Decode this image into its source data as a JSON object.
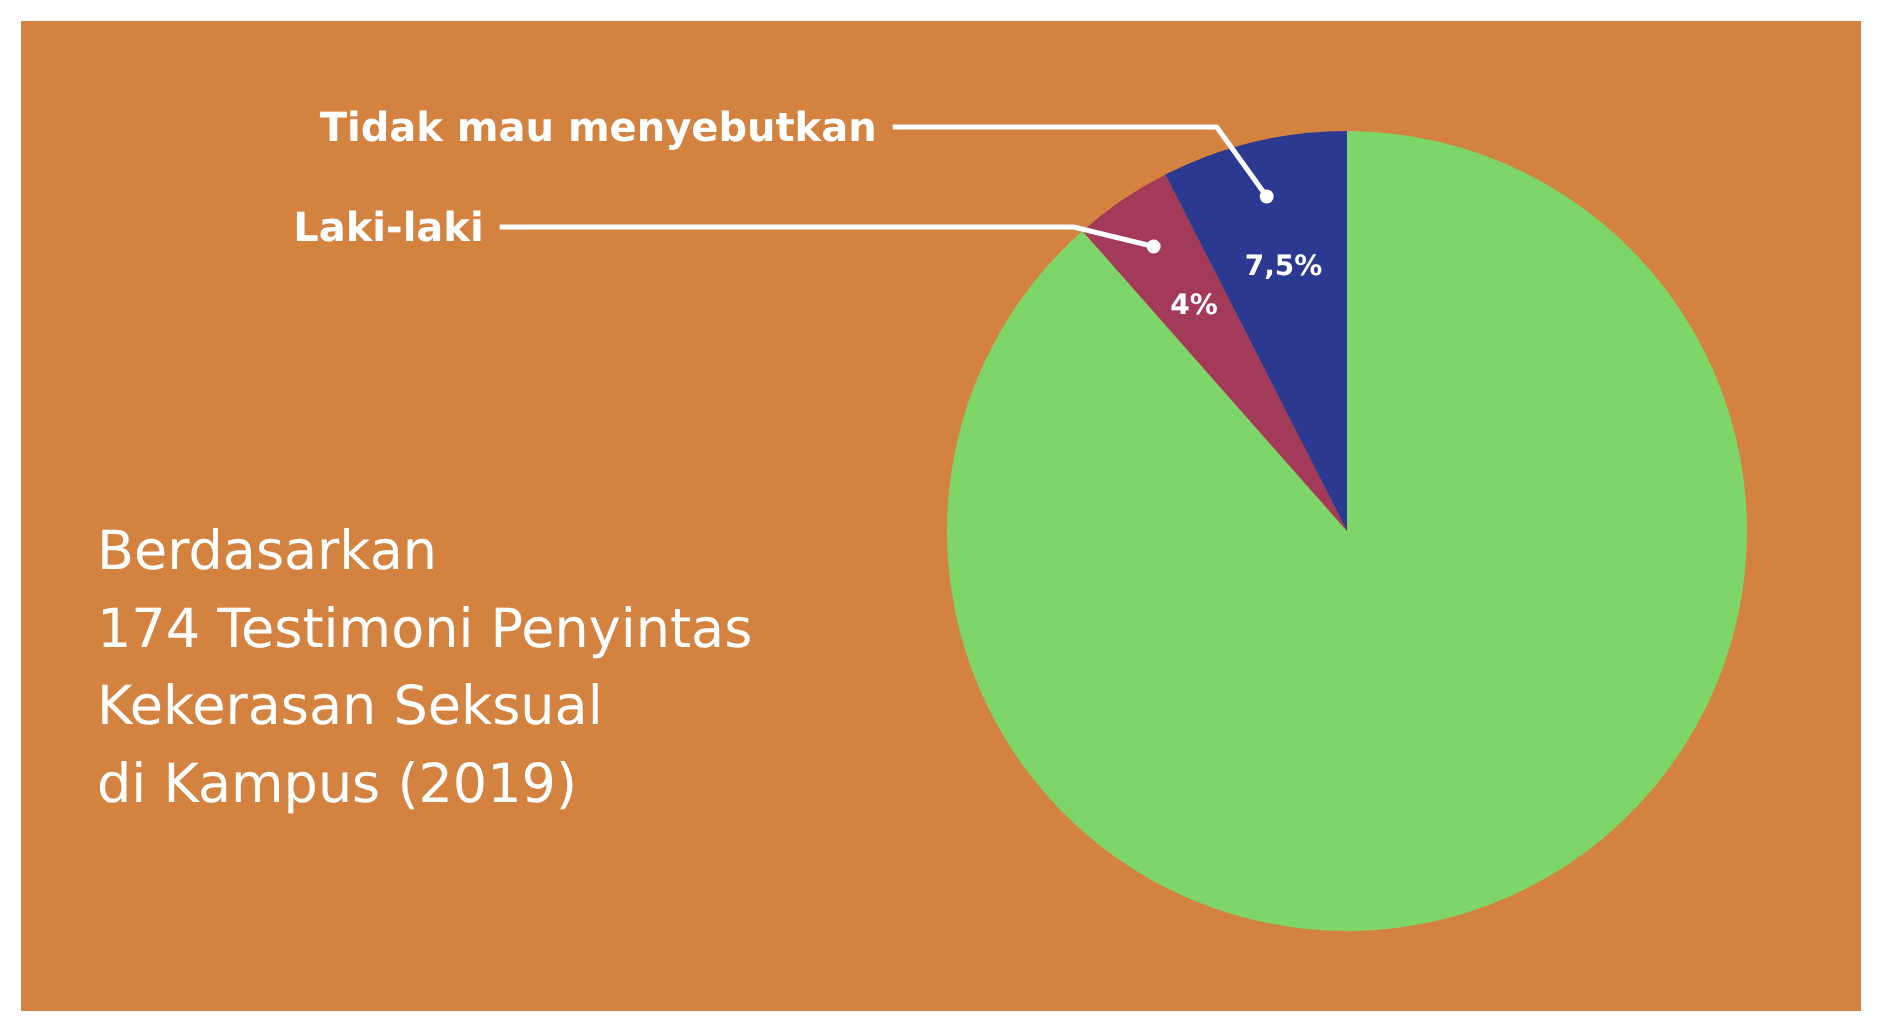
{
  "chart_data": {
    "type": "pie",
    "title": "Berdasarkan\n174 Testimoni Penyintas\nKekerasan Seksual\ndi Kampus (2019)",
    "categories": [
      null,
      "Laki-laki",
      "Tidak mau menyebutkan"
    ],
    "values": [
      88.5,
      4,
      7.5
    ],
    "colors": [
      "#7ed66a",
      "#a33a5a",
      "#2b3990"
    ],
    "value_labels": [
      null,
      "4%",
      "7,5%"
    ]
  }
}
